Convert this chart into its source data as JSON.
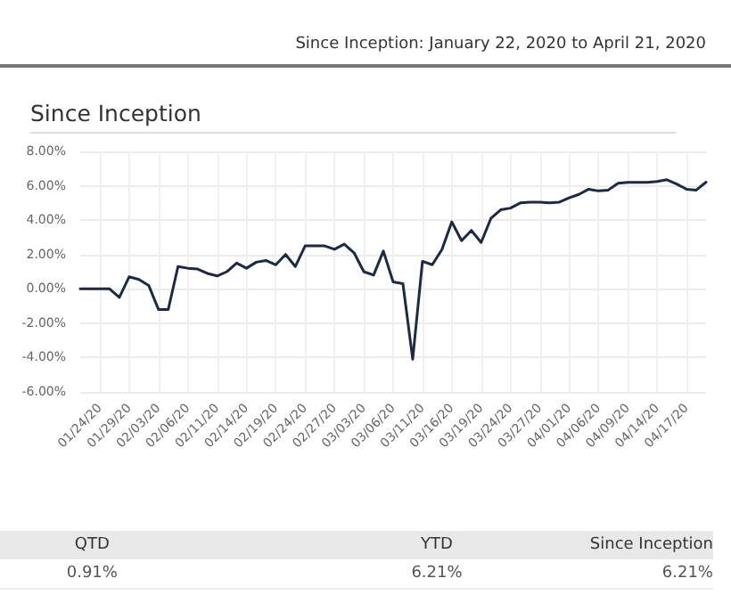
{
  "chart_data": {
    "type": "line",
    "title": "Since Inception",
    "subtitle": "Since Inception: January 22, 2020 to April 21, 2020",
    "categories": [
      null,
      null,
      "01/24/20",
      null,
      null,
      "01/29/20",
      null,
      null,
      "02/03/20",
      null,
      null,
      "02/06/20",
      null,
      null,
      "02/11/20",
      null,
      null,
      "02/14/20",
      null,
      null,
      "02/19/20",
      null,
      null,
      "02/24/20",
      null,
      null,
      "02/27/20",
      null,
      null,
      "03/03/20",
      null,
      null,
      "03/06/20",
      null,
      null,
      "03/11/20",
      null,
      null,
      "03/16/20",
      null,
      null,
      "03/19/20",
      null,
      null,
      "03/24/20",
      null,
      null,
      "03/27/20",
      null,
      null,
      "04/01/20",
      null,
      null,
      "04/06/20",
      null,
      null,
      "04/09/20",
      null,
      null,
      "04/14/20",
      null,
      null,
      "04/17/20",
      null,
      null
    ],
    "series": [
      {
        "color": "#1b2a47",
        "values": [
          0,
          0,
          0,
          0,
          -0.5,
          0.7,
          0.55,
          0.2,
          -1.2,
          -1.2,
          1.3,
          1.2,
          1.15,
          0.9,
          0.75,
          1.0,
          1.5,
          1.2,
          1.55,
          1.65,
          1.4,
          2.0,
          1.3,
          2.5,
          2.5,
          2.5,
          2.3,
          2.6,
          2.1,
          1.0,
          0.8,
          2.2,
          0.4,
          0.3,
          -4.1,
          1.6,
          1.4,
          2.3,
          3.9,
          2.8,
          3.4,
          2.7,
          4.1,
          4.6,
          4.7,
          5.0,
          5.05,
          5.05,
          5.0,
          5.05,
          5.3,
          5.5,
          5.8,
          5.7,
          5.75,
          6.15,
          6.2,
          6.2,
          6.2,
          6.25,
          6.35,
          6.1,
          5.8,
          5.75,
          6.21
        ]
      }
    ],
    "ylim": [
      -6,
      8
    ],
    "yticks": [
      {
        "value": -6,
        "label": "-6.00%"
      },
      {
        "value": -4,
        "label": "-4.00%"
      },
      {
        "value": -2,
        "label": "-2.00%"
      },
      {
        "value": 0,
        "label": "0.00%"
      },
      {
        "value": 2,
        "label": "2.00%"
      },
      {
        "value": 4,
        "label": "4.00%"
      },
      {
        "value": 6,
        "label": "6.00%"
      },
      {
        "value": 8,
        "label": "8.00%"
      }
    ],
    "grid": true,
    "marker": "none",
    "line_style": "solid",
    "annotations": [
      "QTD",
      "YTD",
      "Since Inception",
      "0.91%",
      "6.21%",
      "6.21%"
    ]
  }
}
